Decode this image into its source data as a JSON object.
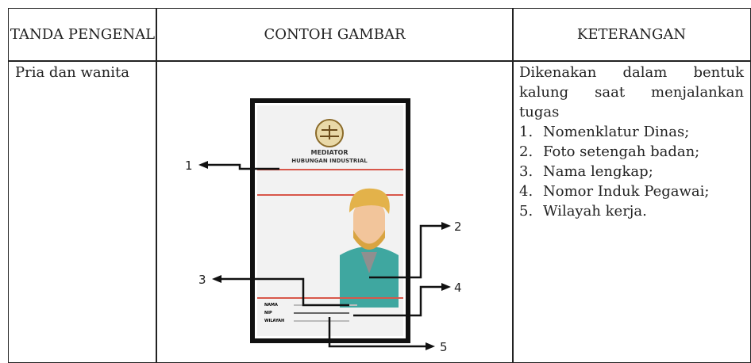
{
  "header": {
    "cells": [
      "TANDA PENGENAL",
      "CONTOH GAMBAR",
      "KETERANGAN"
    ]
  },
  "row": {
    "tanda": "Pria dan wanita",
    "gambar": {
      "card_title": "MEDIATOR",
      "card_subtitle": "HUBUNGAN INDUSTRIAL",
      "fields": [
        "NAMA",
        "NIP",
        "WILAYAH"
      ],
      "callouts": [
        "1",
        "2",
        "3",
        "4",
        "5"
      ]
    },
    "keterangan": {
      "intro": "Dikenakan dalam bentuk kalung saat menjalankan tugas",
      "items": [
        {
          "number": "1.",
          "text": "Nomenklatur Dinas;"
        },
        {
          "number": "2.",
          "text": "Foto setengah badan;"
        },
        {
          "number": "3.",
          "text": "Nama lengkap;"
        },
        {
          "number": "4.",
          "text": "Nomor Induk Pegawai;"
        },
        {
          "number": "5.",
          "text": "Wilayah kerja."
        }
      ]
    }
  }
}
